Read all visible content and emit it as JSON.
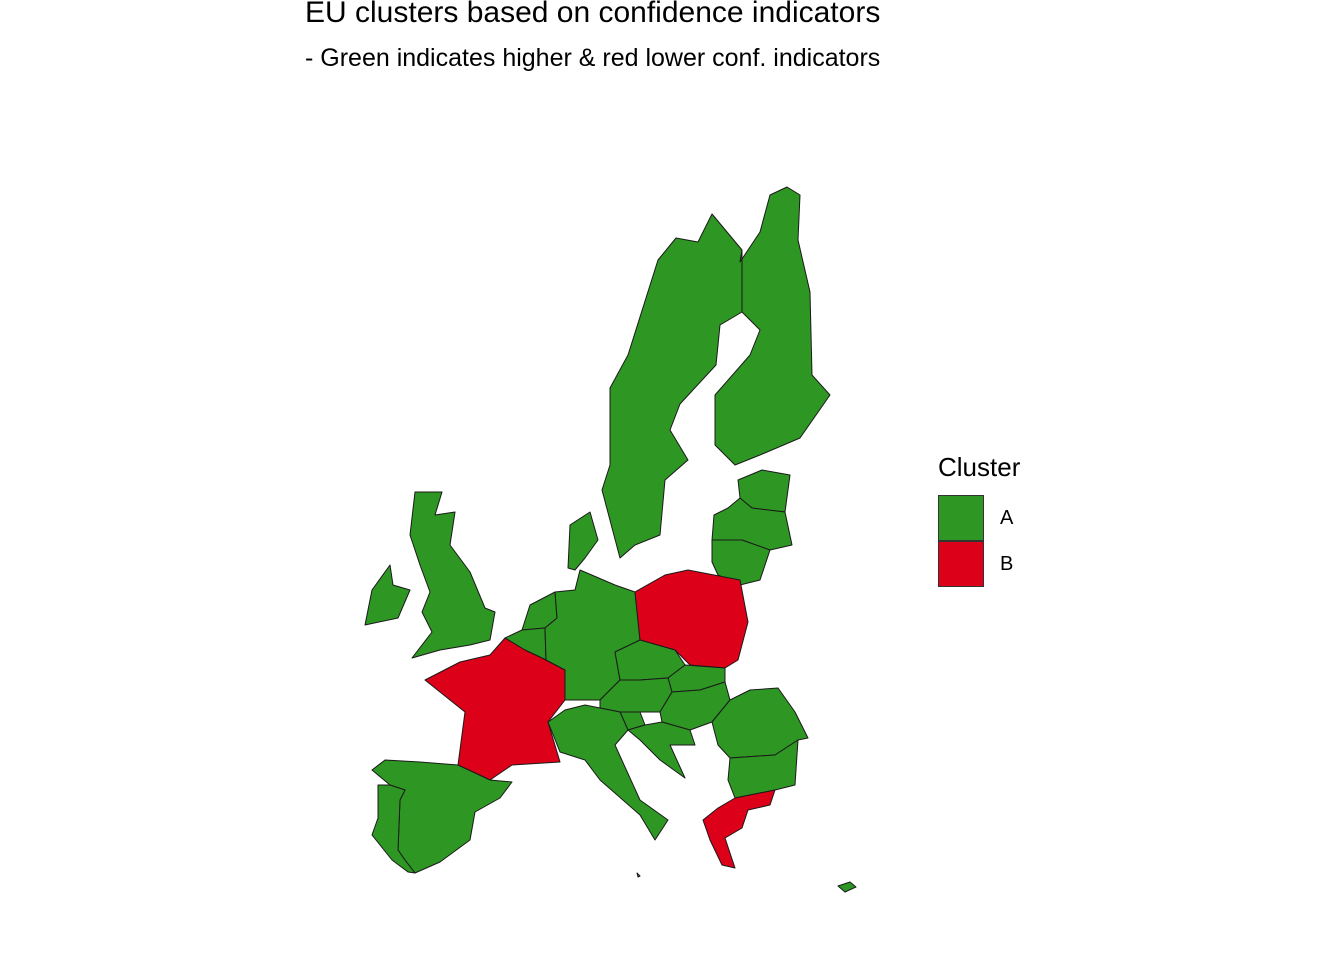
{
  "title": "EU clusters based on confidence indicators",
  "subtitle": "- Green indicates higher & red lower conf. indicators",
  "legend": {
    "title": "Cluster",
    "items": [
      {
        "label": "A",
        "color": "#2e9623"
      },
      {
        "label": "B",
        "color": "#dc0018"
      }
    ]
  },
  "colors": {
    "A": "#2e9623",
    "B": "#dc0018",
    "border": "#1a1a1a"
  }
}
